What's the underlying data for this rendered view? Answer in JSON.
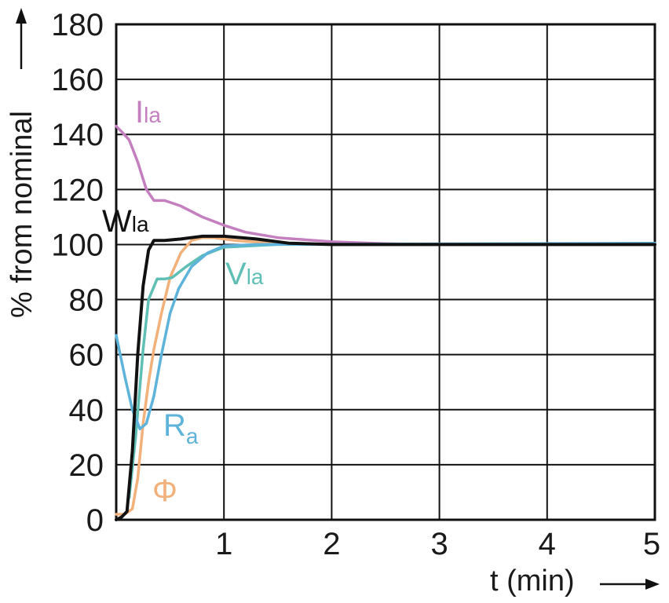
{
  "chart_data": {
    "type": "line",
    "title": "",
    "xlabel": "t (min)",
    "ylabel": "% from nominal",
    "xlim": [
      0,
      5
    ],
    "ylim": [
      0,
      180
    ],
    "x_ticks": [
      "1",
      "2",
      "3",
      "4",
      "5"
    ],
    "y_ticks": [
      "0",
      "20",
      "40",
      "60",
      "80",
      "100",
      "120",
      "140",
      "160",
      "180"
    ],
    "grid": true,
    "series": [
      {
        "name": "Ila",
        "label_main": "I",
        "label_sub": "la",
        "color": "#c47fbf",
        "points": [
          [
            0,
            143
          ],
          [
            0.05,
            141
          ],
          [
            0.12,
            138
          ],
          [
            0.2,
            130
          ],
          [
            0.28,
            120
          ],
          [
            0.35,
            116
          ],
          [
            0.45,
            116
          ],
          [
            0.6,
            114
          ],
          [
            0.8,
            110
          ],
          [
            1.0,
            107
          ],
          [
            1.2,
            104.5
          ],
          [
            1.5,
            102.5
          ],
          [
            2.0,
            101
          ],
          [
            2.5,
            100.3
          ],
          [
            3,
            100
          ],
          [
            5,
            100
          ]
        ]
      },
      {
        "name": "Wla",
        "label_main": "W",
        "label_sub": "la",
        "color": "#111111",
        "points": [
          [
            0,
            0
          ],
          [
            0.05,
            1
          ],
          [
            0.1,
            3
          ],
          [
            0.15,
            25
          ],
          [
            0.2,
            60
          ],
          [
            0.25,
            85
          ],
          [
            0.3,
            98
          ],
          [
            0.35,
            101.5
          ],
          [
            0.45,
            101.5
          ],
          [
            0.6,
            102
          ],
          [
            0.8,
            103
          ],
          [
            1.0,
            103
          ],
          [
            1.3,
            102
          ],
          [
            1.6,
            100.5
          ],
          [
            2.0,
            100
          ],
          [
            5,
            100
          ]
        ]
      },
      {
        "name": "Vla",
        "label_main": "V",
        "label_sub": "la",
        "color": "#5fbfb5",
        "points": [
          [
            0.12,
            8
          ],
          [
            0.18,
            30
          ],
          [
            0.25,
            62
          ],
          [
            0.3,
            80
          ],
          [
            0.38,
            87.5
          ],
          [
            0.45,
            87.5
          ],
          [
            0.52,
            88
          ],
          [
            0.65,
            92
          ],
          [
            0.8,
            96
          ],
          [
            1.0,
            99
          ],
          [
            1.5,
            100
          ],
          [
            5,
            100
          ]
        ]
      },
      {
        "name": "Ra",
        "label_main": "R",
        "label_sub": "a",
        "color": "#5eb3da",
        "points": [
          [
            0,
            67
          ],
          [
            0.08,
            52
          ],
          [
            0.15,
            40
          ],
          [
            0.22,
            33
          ],
          [
            0.28,
            35
          ],
          [
            0.35,
            45
          ],
          [
            0.42,
            60
          ],
          [
            0.5,
            75
          ],
          [
            0.58,
            84
          ],
          [
            0.7,
            92
          ],
          [
            0.85,
            97
          ],
          [
            1.0,
            99.5
          ],
          [
            1.3,
            100
          ],
          [
            5,
            100.5
          ]
        ]
      },
      {
        "name": "Φ",
        "label_main": "Φ",
        "label_sub": "",
        "color": "#f2b07a",
        "points": [
          [
            0,
            2
          ],
          [
            0.08,
            2
          ],
          [
            0.15,
            4
          ],
          [
            0.2,
            15
          ],
          [
            0.25,
            35
          ],
          [
            0.3,
            50
          ],
          [
            0.35,
            62
          ],
          [
            0.42,
            75
          ],
          [
            0.5,
            88
          ],
          [
            0.6,
            97
          ],
          [
            0.7,
            101.5
          ],
          [
            0.8,
            102.5
          ],
          [
            0.9,
            102.5
          ],
          [
            1.1,
            101.5
          ],
          [
            1.5,
            100.3
          ],
          [
            2.0,
            100
          ],
          [
            5,
            100
          ]
        ]
      }
    ]
  }
}
